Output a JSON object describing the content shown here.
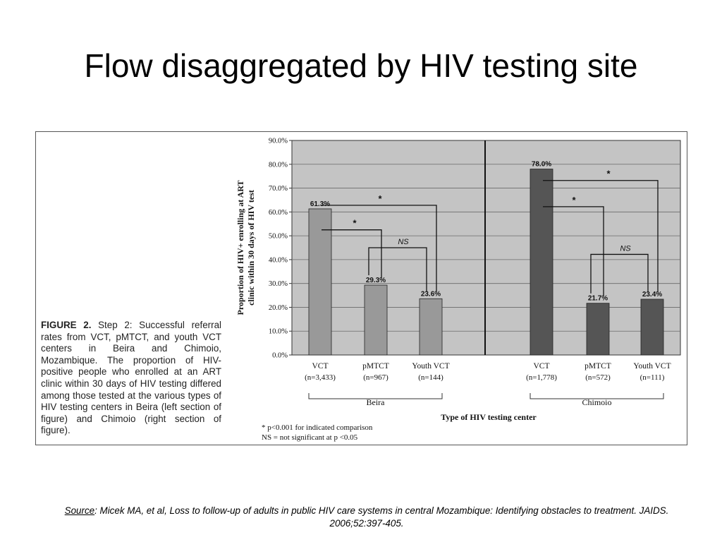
{
  "slide": {
    "title": "Flow disaggregated by HIV testing site"
  },
  "figure": {
    "caption_label": "FIGURE 2.",
    "caption_text": " Step 2: Successful referral rates from VCT, pMTCT, and youth VCT centers in Beira and Chimoio, Mozambique. The proportion of HIV-positive people who enrolled at an ART clinic within 30 days of HIV testing differed among those tested at the various types of HIV testing centers in Beira (left section of figure) and Chimoio (right section of figure).",
    "footnotes": [
      "* p<0.001 for indicated comparison",
      "NS = not significant at p <0.05"
    ]
  },
  "source": {
    "label": "Source",
    "text": ": Micek MA, et al, Loss to follow-up of adults in public HIV care systems in central Mozambique: Identifying obstacles to treatment. JAIDS. 2006;52:397-405."
  },
  "chart_data": {
    "type": "bar",
    "ylabel_line1": "Proportion of HIV+ enrolling at ART",
    "ylabel_line2": "clinic within 30 days of HIV test",
    "xlabel": "Type of HIV testing center",
    "ylim": [
      0,
      90
    ],
    "yticks": [
      "0.0%",
      "10.0%",
      "20.0%",
      "30.0%",
      "40.0%",
      "50.0%",
      "60.0%",
      "70.0%",
      "80.0%",
      "90.0%"
    ],
    "grid": true,
    "colors": {
      "beira": "#999999",
      "chimoio": "#555555",
      "plot_bg": "#c4c4c4"
    },
    "groups": [
      {
        "name": "Beira",
        "bars": [
          {
            "label": "VCT",
            "n": "(n=3,433)",
            "value": 61.3,
            "value_label": "61.3%"
          },
          {
            "label": "pMTCT",
            "n": "(n=967)",
            "value": 29.3,
            "value_label": "29.3%"
          },
          {
            "label": "Youth VCT",
            "n": "(n=144)",
            "value": 23.6,
            "value_label": "23.6%"
          }
        ],
        "comparisons": [
          {
            "from": 0,
            "to": 1,
            "label": "*"
          },
          {
            "from": 0,
            "to": 2,
            "label": "*"
          },
          {
            "from": 1,
            "to": 2,
            "label": "NS"
          }
        ]
      },
      {
        "name": "Chimoio",
        "bars": [
          {
            "label": "VCT",
            "n": "(n=1,778)",
            "value": 78.0,
            "value_label": "78.0%"
          },
          {
            "label": "pMTCT",
            "n": "(n=572)",
            "value": 21.7,
            "value_label": "21.7%"
          },
          {
            "label": "Youth VCT",
            "n": "(n=111)",
            "value": 23.4,
            "value_label": "23.4%"
          }
        ],
        "comparisons": [
          {
            "from": 0,
            "to": 1,
            "label": "*"
          },
          {
            "from": 0,
            "to": 2,
            "label": "*"
          },
          {
            "from": 1,
            "to": 2,
            "label": "NS"
          }
        ]
      }
    ]
  }
}
